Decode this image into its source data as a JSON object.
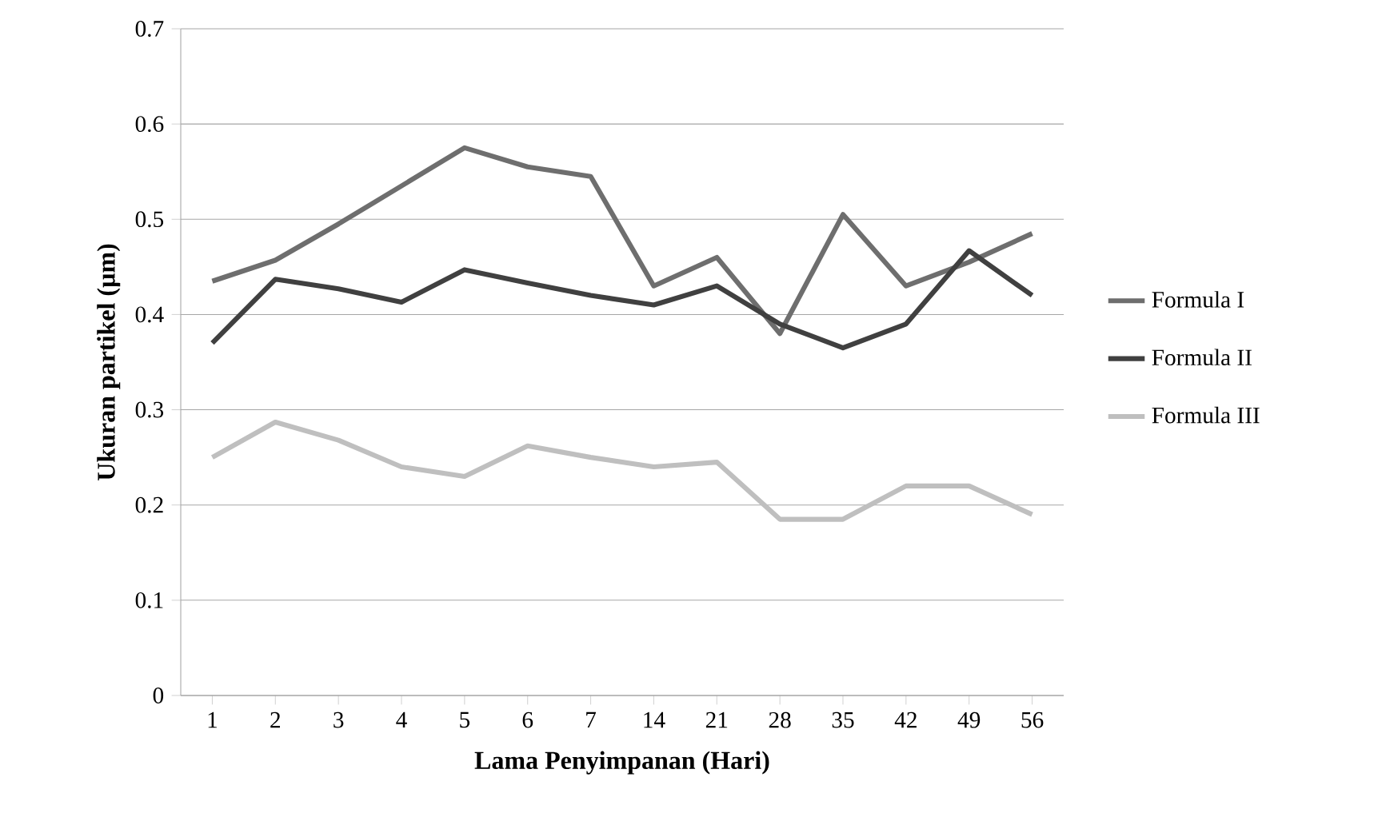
{
  "chart_data": {
    "type": "line",
    "xlabel": "Lama Penyimpanan (Hari)",
    "ylabel": "Ukuran partikel (µm)",
    "categories": [
      "1",
      "2",
      "3",
      "4",
      "5",
      "6",
      "7",
      "14",
      "21",
      "28",
      "35",
      "42",
      "49",
      "56"
    ],
    "series": [
      {
        "name": "Formula I",
        "color": "#6e6e6e",
        "values": [
          0.435,
          0.457,
          0.495,
          0.535,
          0.575,
          0.555,
          0.545,
          0.43,
          0.46,
          0.38,
          0.505,
          0.43,
          0.455,
          0.485
        ]
      },
      {
        "name": "Formula II",
        "color": "#404040",
        "values": [
          0.37,
          0.437,
          0.427,
          0.413,
          0.447,
          0.433,
          0.42,
          0.41,
          0.43,
          0.39,
          0.365,
          0.39,
          0.467,
          0.42
        ]
      },
      {
        "name": "Formula III",
        "color": "#bfbfbf",
        "values": [
          0.25,
          0.287,
          0.268,
          0.24,
          0.23,
          0.262,
          0.25,
          0.24,
          0.245,
          0.185,
          0.185,
          0.22,
          0.22,
          0.19
        ]
      }
    ],
    "ylim": [
      0,
      0.7
    ],
    "yticks": [
      0,
      0.1,
      0.2,
      0.3,
      0.4,
      0.5,
      0.6,
      0.7
    ],
    "grid": "y",
    "legend": "right",
    "marker": "none",
    "line_style": "solid"
  }
}
